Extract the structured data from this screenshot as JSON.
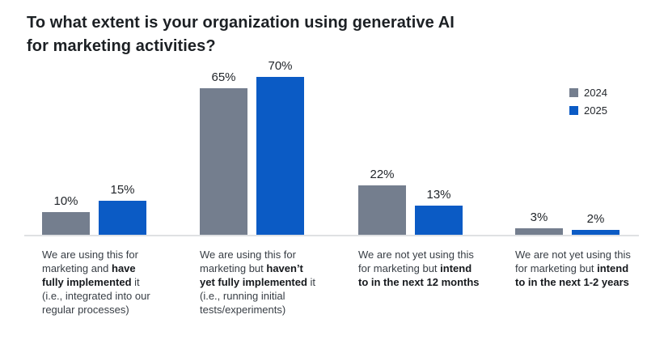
{
  "title": {
    "line1": "To what extent is your organization using generative AI",
    "line2": "for marketing activities?"
  },
  "legend": {
    "items": [
      {
        "label": "2024",
        "series": "2024"
      },
      {
        "label": "2025",
        "series": "2025"
      }
    ]
  },
  "colors": {
    "2024": "#747E8E",
    "2025": "#0B5BC5",
    "axis": "#DFE1E3"
  },
  "chart_data": {
    "type": "bar",
    "title": "To what extent is your organization using generative AI for marketing activities?",
    "categories": [
      "We are using this for marketing and have fully implemented it (i.e., integrated into our regular processes)",
      "We are using this for marketing but haven't yet fully implemented it (i.e., running initial tests/experiments)",
      "We are not yet using this for marketing but intend to in the next 12 months",
      "We are not yet using this for marketing but intend to in the next 1-2 years"
    ],
    "series": [
      {
        "name": "2024",
        "values": [
          10,
          65,
          22,
          3
        ]
      },
      {
        "name": "2025",
        "values": [
          15,
          70,
          13,
          2
        ]
      }
    ],
    "value_labels": [
      [
        "10%",
        "15%"
      ],
      [
        "65%",
        "70%"
      ],
      [
        "22%",
        "13%"
      ],
      [
        "3%",
        "2%"
      ]
    ],
    "xlabel": "",
    "ylabel": "",
    "ylim": [
      0,
      100
    ],
    "grid": false,
    "legend_position": "top-right"
  },
  "groups": [
    {
      "bars": [
        {
          "series": "2024",
          "value": 10,
          "label": "10%"
        },
        {
          "series": "2025",
          "value": 15,
          "label": "15%"
        }
      ],
      "caption_lines": [
        [
          {
            "t": "We are using this for",
            "b": false
          }
        ],
        [
          {
            "t": "marketing and ",
            "b": false
          },
          {
            "t": "have",
            "b": true
          }
        ],
        [
          {
            "t": "fully implemented",
            "b": true
          },
          {
            "t": " it",
            "b": false
          }
        ],
        [
          {
            "t": "(i.e., integrated into our",
            "b": false
          }
        ],
        [
          {
            "t": "regular processes)",
            "b": false
          }
        ]
      ]
    },
    {
      "bars": [
        {
          "series": "2024",
          "value": 65,
          "label": "65%"
        },
        {
          "series": "2025",
          "value": 70,
          "label": "70%"
        }
      ],
      "caption_lines": [
        [
          {
            "t": "We are using this for",
            "b": false
          }
        ],
        [
          {
            "t": "marketing but ",
            "b": false
          },
          {
            "t": "haven’t",
            "b": true
          }
        ],
        [
          {
            "t": "yet fully implemented",
            "b": true
          },
          {
            "t": " it",
            "b": false
          }
        ],
        [
          {
            "t": "(i.e., running initial",
            "b": false
          }
        ],
        [
          {
            "t": "tests/experiments)",
            "b": false
          }
        ]
      ]
    },
    {
      "bars": [
        {
          "series": "2024",
          "value": 22,
          "label": "22%"
        },
        {
          "series": "2025",
          "value": 13,
          "label": "13%"
        }
      ],
      "caption_lines": [
        [
          {
            "t": "We are not yet using this",
            "b": false
          }
        ],
        [
          {
            "t": "for marketing but ",
            "b": false
          },
          {
            "t": "intend",
            "b": true
          }
        ],
        [
          {
            "t": "to in the next 12 months",
            "b": true
          }
        ]
      ]
    },
    {
      "bars": [
        {
          "series": "2024",
          "value": 3,
          "label": "3%"
        },
        {
          "series": "2025",
          "value": 2,
          "label": "2%"
        }
      ],
      "caption_lines": [
        [
          {
            "t": "We are not yet using this",
            "b": false
          }
        ],
        [
          {
            "t": "for marketing but ",
            "b": false
          },
          {
            "t": "intend",
            "b": true
          }
        ],
        [
          {
            "t": "to in the next 1-2 years",
            "b": true
          }
        ]
      ]
    }
  ]
}
